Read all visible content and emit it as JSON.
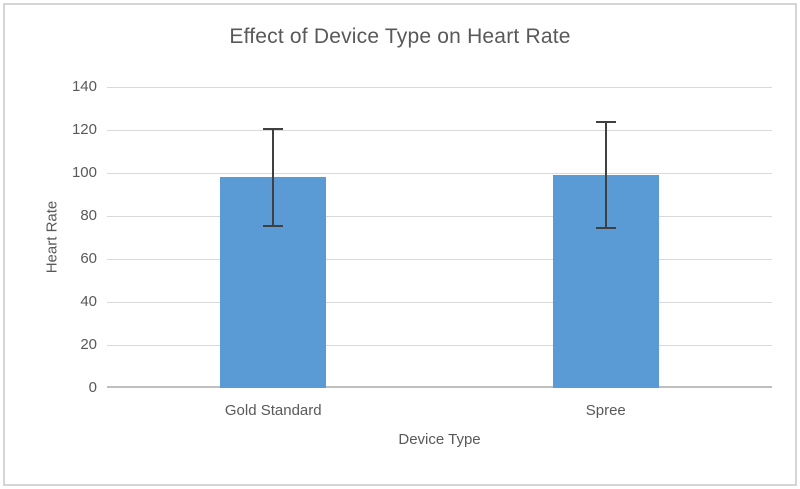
{
  "chart_data": {
    "type": "bar",
    "title": "Effect of Device Type on Heart Rate",
    "xlabel": "Device Type",
    "ylabel": "Heart Rate",
    "categories": [
      "Gold Standard",
      "Spree"
    ],
    "values": [
      98,
      99
    ],
    "error_bars": [
      {
        "low": 75,
        "high": 121
      },
      {
        "low": 74,
        "high": 124
      }
    ],
    "ylim": [
      0,
      140
    ],
    "yticks": [
      0,
      20,
      40,
      60,
      80,
      100,
      120,
      140
    ],
    "grid": true,
    "legend": false,
    "colors": {
      "bar": "#5B9BD5",
      "error": "#404040",
      "gridline": "#D9D9D9",
      "axis_line": "#BFBFBF",
      "text": "#595959",
      "border": "#D5D5D5",
      "background": "#FFFFFF"
    }
  }
}
